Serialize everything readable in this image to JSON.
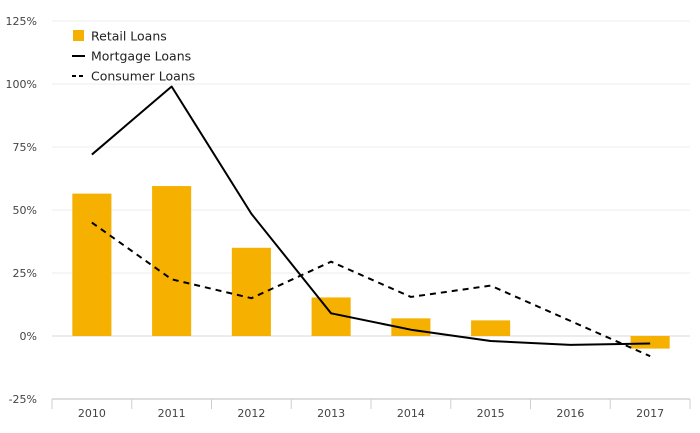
{
  "chart_data": {
    "type": "bar",
    "categories": [
      "2010",
      "2011",
      "2012",
      "2013",
      "2014",
      "2015",
      "2016",
      "2017"
    ],
    "series": [
      {
        "name": "Retail Loans",
        "kind": "bar",
        "color": "#f5b000",
        "values": [
          56.5,
          59.5,
          35,
          15.3,
          7,
          6.2,
          null,
          -5
        ]
      },
      {
        "name": "Mortgage Loans",
        "kind": "line",
        "color": "#000000",
        "dash": "solid",
        "values": [
          72,
          99,
          48.5,
          9,
          2.5,
          -2,
          -3.5,
          -3
        ]
      },
      {
        "name": "Consumer Loans",
        "kind": "line",
        "color": "#000000",
        "dash": "dashed",
        "values": [
          45,
          22.5,
          15,
          29.5,
          15.5,
          20,
          6,
          -8
        ]
      }
    ],
    "y_ticks": [
      {
        "value": 125,
        "label": "125%"
      },
      {
        "value": 100,
        "label": "100%"
      },
      {
        "value": 75,
        "label": "75%"
      },
      {
        "value": 50,
        "label": "50%"
      },
      {
        "value": 25,
        "label": "25%"
      },
      {
        "value": 0,
        "label": "0%"
      },
      {
        "value": -25,
        "label": "-25%"
      }
    ],
    "ylim": [
      -25,
      125
    ],
    "title": "",
    "xlabel": "",
    "ylabel": "",
    "grid": true,
    "legend_position": "top-left"
  }
}
